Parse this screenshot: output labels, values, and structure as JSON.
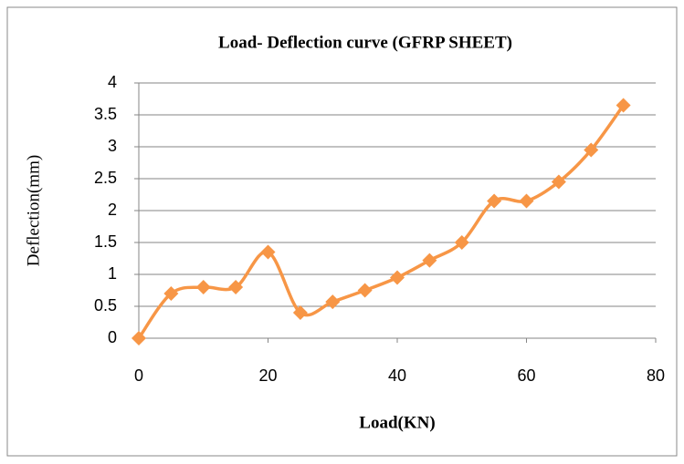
{
  "chart_data": {
    "type": "line",
    "title": "Load- Deflection curve (GFRP SHEET)",
    "x_label": "Load(KN)",
    "y_label": "Deflection(mm)",
    "x": [
      0,
      5,
      10,
      15,
      20,
      25,
      30,
      35,
      40,
      45,
      50,
      55,
      60,
      65,
      70,
      75
    ],
    "series": [
      {
        "name": "Deflection",
        "color": "#F79646",
        "values": [
          0,
          0.7,
          0.8,
          0.8,
          1.35,
          0.4,
          0.57,
          0.75,
          0.95,
          1.22,
          1.5,
          2.15,
          2.15,
          2.45,
          2.95,
          3.65
        ]
      }
    ],
    "xlim": [
      0,
      80
    ],
    "xticks": [
      0,
      20,
      40,
      60,
      80
    ],
    "ylim": [
      0,
      4
    ],
    "yticks": [
      0,
      0.5,
      1,
      1.5,
      2,
      2.5,
      3,
      3.5,
      4
    ],
    "grid": true,
    "smooth": true
  }
}
